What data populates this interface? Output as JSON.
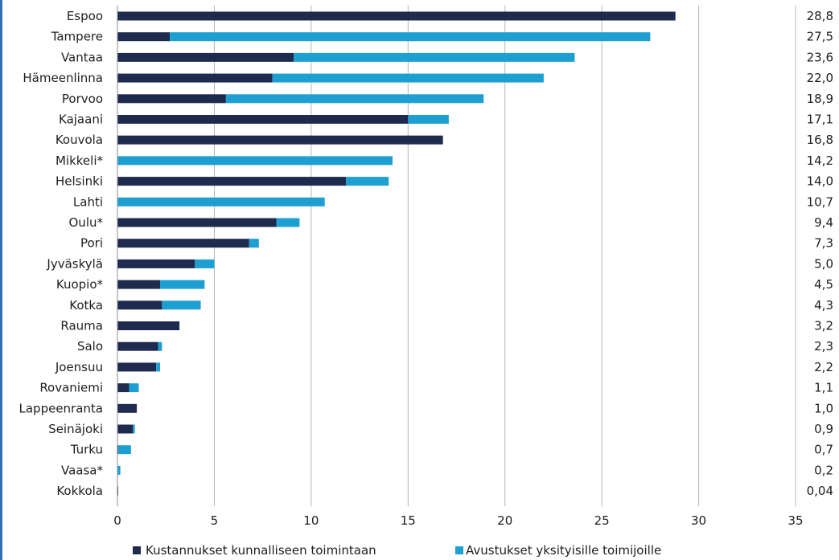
{
  "chart_data": {
    "type": "bar",
    "orientation": "horizontal",
    "stacked": true,
    "categories": [
      "Espoo",
      "Tampere",
      "Vantaa",
      "Hämeenlinna",
      "Porvoo",
      "Kajaani",
      "Kouvola",
      "Mikkeli*",
      "Helsinki",
      "Lahti",
      "Oulu*",
      "Pori",
      "Jyväskylä",
      "Kuopio*",
      "Kotka",
      "Rauma",
      "Salo",
      "Joensuu",
      "Rovaniemi",
      "Lappeenranta",
      "Seinäjoki",
      "Turku",
      "Vaasa*",
      "Kokkola"
    ],
    "series": [
      {
        "name": "Kustannukset kunnalliseen toimintaan",
        "color": "#1f2a4f",
        "values": [
          28.8,
          2.7,
          9.1,
          8.0,
          5.6,
          15.0,
          16.8,
          0,
          11.8,
          0,
          8.2,
          6.8,
          4.0,
          2.2,
          2.3,
          3.2,
          2.1,
          2.0,
          0.6,
          1.0,
          0.8,
          0.05,
          0.0,
          0.04
        ]
      },
      {
        "name": "Avustukset yksityisille toimijoille",
        "color": "#1e9fd2",
        "values": [
          0,
          24.8,
          14.5,
          14.0,
          13.3,
          2.1,
          0,
          14.2,
          2.2,
          10.7,
          1.2,
          0.5,
          1.0,
          2.3,
          2.0,
          0,
          0.2,
          0.2,
          0.5,
          0,
          0.1,
          0.65,
          0.15,
          0
        ]
      }
    ],
    "totals": [
      "28,8",
      "27,5",
      "23,6",
      "22,0",
      "18,9",
      "17,1",
      "16,8",
      "14,2",
      "14,0",
      "10,7",
      "9,4",
      "7,3",
      "5,0",
      "4,5",
      "4,3",
      "3,2",
      "2,3",
      "2,2",
      "1,1",
      "1,0",
      "0,9",
      "0,7",
      "0,2",
      "0,04"
    ],
    "xlim": [
      0,
      35
    ],
    "xticks": [
      0,
      5,
      10,
      15,
      20,
      25,
      30,
      35
    ],
    "xtick_labels": [
      "0",
      "5",
      "10",
      "15",
      "20",
      "25",
      "30",
      "35"
    ],
    "grid": "vertical",
    "legend": "bottom",
    "title": "",
    "xlabel": "",
    "ylabel": ""
  }
}
